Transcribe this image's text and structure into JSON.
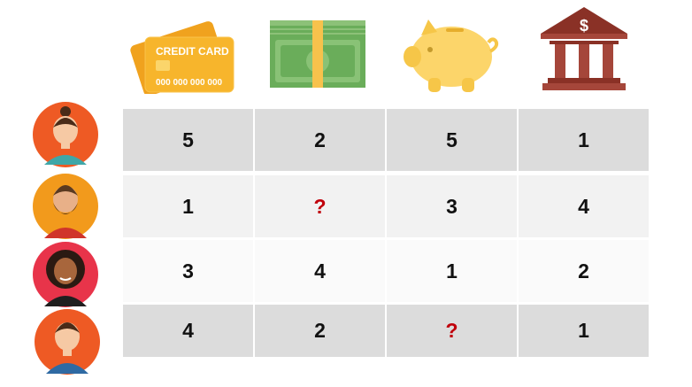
{
  "colors": {
    "row_dark": "#dcdcdc",
    "row_light": "#f5f5f5",
    "unknown_mark": "#c0000b"
  },
  "header_icons": [
    {
      "icon": "credit-card-icon",
      "text": "CREDIT CARD",
      "number": "000 000 000 000"
    },
    {
      "icon": "cash-stack-icon"
    },
    {
      "icon": "piggy-bank-icon"
    },
    {
      "icon": "bank-building-icon",
      "symbol": "$"
    }
  ],
  "rows": [
    {
      "avatar": "woman-avatar-icon",
      "cells": [
        "5",
        "2",
        "5",
        "1"
      ]
    },
    {
      "avatar": "bearded-man-avatar-icon",
      "cells": [
        "1",
        "?",
        "3",
        "4"
      ]
    },
    {
      "avatar": "woman-curly-hair-avatar-icon",
      "cells": [
        "3",
        "4",
        "1",
        "2"
      ]
    },
    {
      "avatar": "man-avatar-icon",
      "cells": [
        "4",
        "2",
        "?",
        "1"
      ]
    }
  ]
}
